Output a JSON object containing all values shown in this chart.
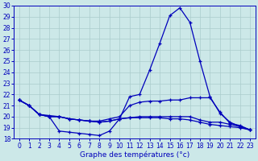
{
  "xlabel": "Graphe des températures (°c)",
  "background_color": "#cce8e8",
  "grid_color": "#aacccc",
  "line_color": "#0000bb",
  "x_ticks": [
    0,
    1,
    2,
    3,
    4,
    5,
    6,
    7,
    8,
    9,
    10,
    11,
    12,
    13,
    14,
    15,
    16,
    17,
    18,
    19,
    20,
    21,
    22,
    23
  ],
  "y_min": 18,
  "y_max": 30,
  "y_ticks": [
    18,
    19,
    20,
    21,
    22,
    23,
    24,
    25,
    26,
    27,
    28,
    29,
    30
  ],
  "series": [
    [
      21.5,
      21.0,
      20.2,
      20.0,
      18.7,
      18.6,
      18.5,
      18.4,
      18.3,
      18.7,
      19.8,
      21.8,
      22.0,
      24.2,
      26.6,
      29.1,
      29.8,
      28.5,
      25.0,
      21.8,
      20.3,
      19.5,
      19.1,
      18.8
    ],
    [
      21.5,
      21.0,
      20.2,
      20.0,
      20.0,
      19.8,
      19.7,
      19.6,
      19.6,
      19.8,
      20.0,
      21.0,
      21.3,
      21.4,
      21.4,
      21.5,
      21.5,
      21.7,
      21.7,
      21.7,
      20.4,
      19.4,
      19.2,
      18.8
    ],
    [
      21.5,
      21.0,
      20.2,
      20.1,
      20.0,
      19.8,
      19.7,
      19.6,
      19.5,
      19.6,
      19.8,
      19.9,
      20.0,
      20.0,
      20.0,
      20.0,
      20.0,
      20.0,
      19.7,
      19.5,
      19.5,
      19.3,
      19.1,
      18.8
    ],
    [
      21.5,
      21.0,
      20.2,
      20.0,
      20.0,
      19.8,
      19.7,
      19.6,
      19.5,
      19.6,
      19.8,
      19.9,
      19.9,
      19.9,
      19.9,
      19.8,
      19.8,
      19.7,
      19.5,
      19.3,
      19.2,
      19.1,
      19.0,
      18.8
    ]
  ]
}
